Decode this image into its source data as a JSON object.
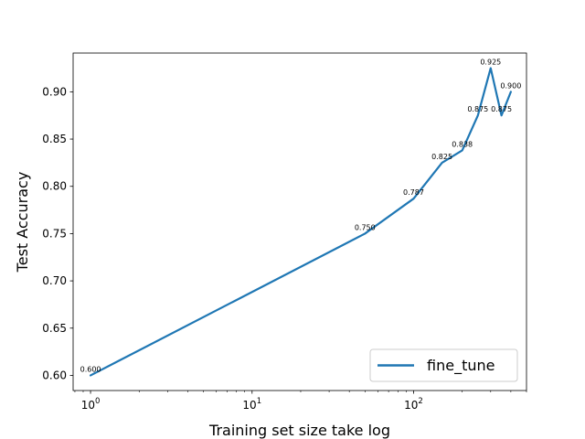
{
  "chart_data": {
    "type": "line",
    "xscale": "log",
    "xlabel": "Training set size take log",
    "ylabel": "Test Accuracy",
    "xlim": [
      0.78,
      500
    ],
    "ylim": [
      0.584,
      0.941
    ],
    "x_ticks": [
      {
        "value": 1,
        "base": "10",
        "exp": "0"
      },
      {
        "value": 10,
        "base": "10",
        "exp": "1"
      },
      {
        "value": 100,
        "base": "10",
        "exp": "2"
      }
    ],
    "y_ticks": [
      "0.60",
      "0.65",
      "0.70",
      "0.75",
      "0.80",
      "0.85",
      "0.90"
    ],
    "legend_position": "bottom-right",
    "grid": false,
    "series": [
      {
        "name": "fine_tune",
        "color": "#1f77b4",
        "x": [
          1,
          50,
          100,
          150,
          200,
          250,
          300,
          350,
          400
        ],
        "y": [
          0.6,
          0.75,
          0.787,
          0.825,
          0.838,
          0.875,
          0.925,
          0.875,
          0.9
        ],
        "labels": [
          "0.600",
          "0.750",
          "0.787",
          "0.825",
          "0.838",
          "0.875",
          "0.925",
          "0.875",
          "0.900"
        ]
      }
    ]
  }
}
